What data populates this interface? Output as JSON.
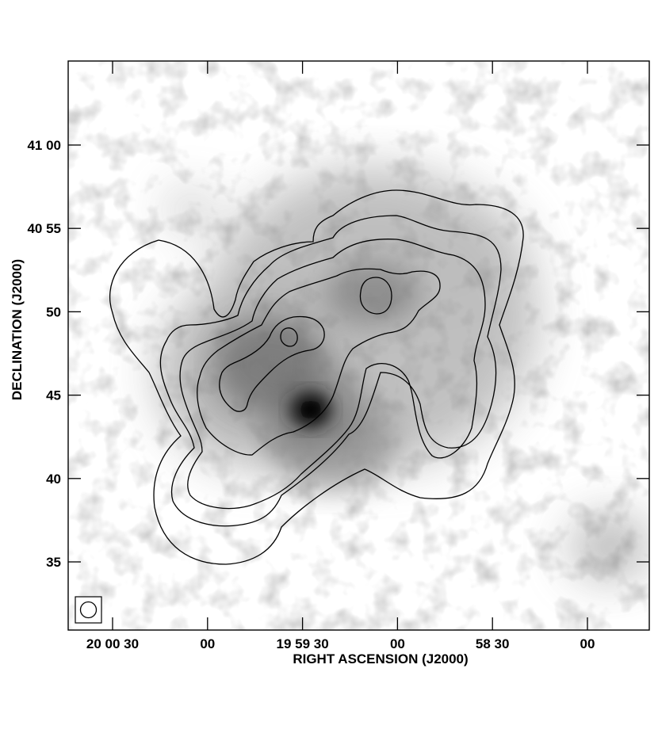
{
  "chart_data": {
    "type": "heatmap",
    "description_kind": "greyscale sky image with overlaid contour levels",
    "xlabel": "RIGHT ASCENSION (J2000)",
    "ylabel": "DECLINATION (J2000)",
    "x_ticks": [
      {
        "label": "20 00 30",
        "ra_seconds_of_time": 72030
      },
      {
        "label": "00",
        "ra_seconds_of_time": 72000
      },
      {
        "label": "19 59 30",
        "ra_seconds_of_time": 71970
      },
      {
        "label": "00",
        "ra_seconds_of_time": 71940
      },
      {
        "label": "58 30",
        "ra_seconds_of_time": 71910
      },
      {
        "label": "00",
        "ra_seconds_of_time": 71880
      }
    ],
    "y_ticks": [
      {
        "label": "41 00",
        "dec_arcmin_above_40deg": 60
      },
      {
        "label": "40 55",
        "dec_arcmin_above_40deg": 55
      },
      {
        "label": "50",
        "dec_arcmin_above_40deg": 50
      },
      {
        "label": "45",
        "dec_arcmin_above_40deg": 45
      },
      {
        "label": "40",
        "dec_arcmin_above_40deg": 40
      },
      {
        "label": "35",
        "dec_arcmin_above_40deg": 35
      }
    ],
    "colormap": "greyscale (white = low, black = high)",
    "peak": {
      "ra": "19 59 29",
      "dec": "40 44"
    },
    "contour_count": 5,
    "beam_marker": "circle in box, bottom-left corner"
  }
}
